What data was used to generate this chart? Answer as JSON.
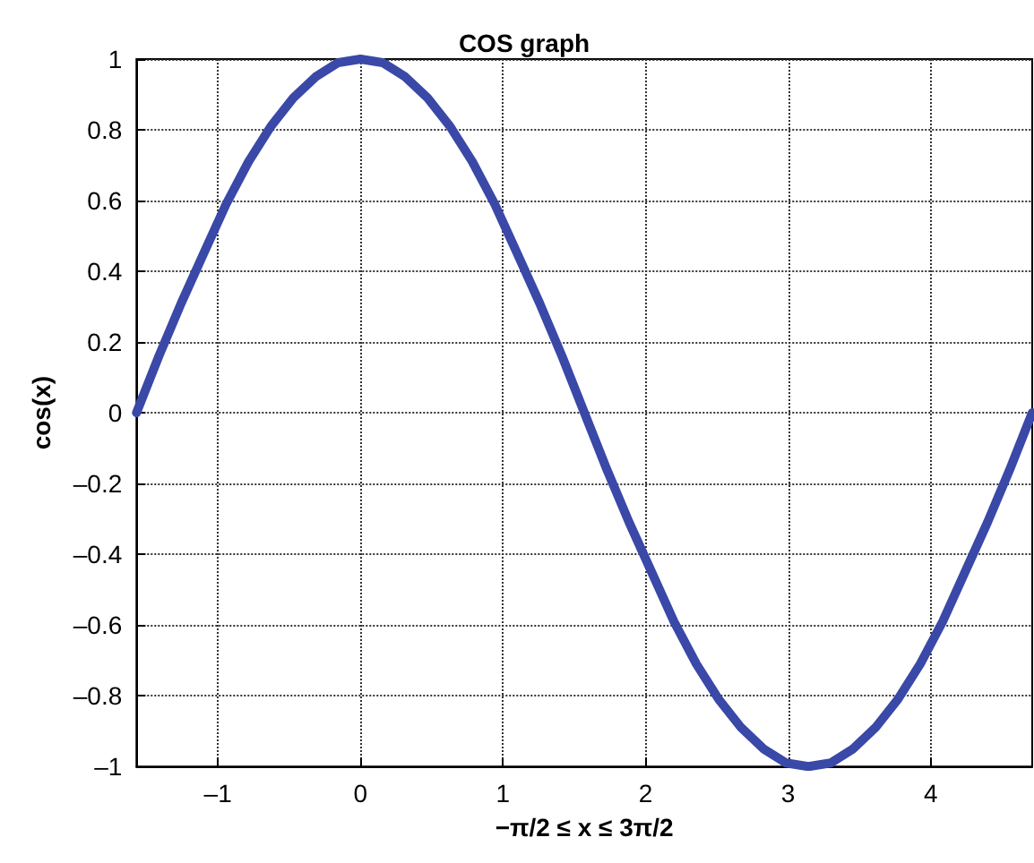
{
  "chart_data": {
    "type": "line",
    "title": "COS graph",
    "xlabel": "−π/2 ≤ x ≤ 3π/2",
    "ylabel": "cos(x)",
    "x": [
      -1.571,
      -1.414,
      -1.257,
      -1.1,
      -0.942,
      -0.785,
      -0.628,
      -0.471,
      -0.314,
      -0.157,
      0,
      0.157,
      0.314,
      0.471,
      0.628,
      0.785,
      0.942,
      1.1,
      1.257,
      1.414,
      1.571,
      1.728,
      1.885,
      2.042,
      2.199,
      2.356,
      2.513,
      2.67,
      2.827,
      2.985,
      3.142,
      3.299,
      3.456,
      3.613,
      3.77,
      3.927,
      4.084,
      4.241,
      4.398,
      4.555,
      4.712
    ],
    "series": [
      {
        "color": "#3a48a8",
        "values": [
          0,
          0.16,
          0.31,
          0.45,
          0.59,
          0.71,
          0.81,
          0.89,
          0.95,
          0.99,
          1,
          0.99,
          0.95,
          0.89,
          0.81,
          0.71,
          0.59,
          0.45,
          0.31,
          0.16,
          0,
          -0.16,
          -0.31,
          -0.45,
          -0.59,
          -0.71,
          -0.81,
          -0.89,
          -0.95,
          -0.99,
          -1,
          -0.99,
          -0.95,
          -0.89,
          -0.81,
          -0.71,
          -0.59,
          -0.45,
          -0.31,
          -0.16,
          0
        ]
      }
    ],
    "xlim": [
      -1.571,
      4.712
    ],
    "xticks": [
      {
        "value": -1,
        "label": "–1"
      },
      0,
      1,
      2,
      3,
      4
    ],
    "ylim": [
      -1,
      1
    ],
    "yticks": [
      {
        "value": -1,
        "label": "–1"
      },
      {
        "value": -0.8,
        "label": "–0.8"
      },
      {
        "value": -0.6,
        "label": "–0.6"
      },
      {
        "value": -0.4,
        "label": "–0.4"
      },
      {
        "value": -0.2,
        "label": "–0.2"
      },
      0,
      0.2,
      0.4,
      0.6,
      0.8,
      1
    ],
    "grid": true,
    "marker": "none",
    "line_style": "solid"
  }
}
